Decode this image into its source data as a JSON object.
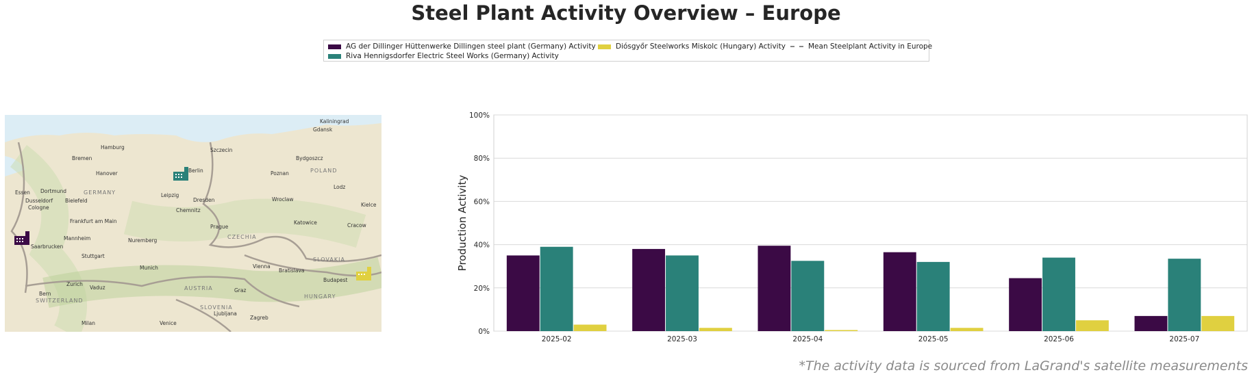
{
  "title": "Steel Plant Activity Overview – Europe",
  "legend": {
    "items": [
      {
        "label": "AG der Dillinger Hüttenwerke Dillingen steel plant (Germany) Activity",
        "color": "#3b0a45"
      },
      {
        "label": "Riva Hennigsdorfer Electric Steel Works (Germany) Activity",
        "color": "#2a8179"
      },
      {
        "label": "Diósgyőr Steelworks Miskolc (Hungary) Activity",
        "color": "#e0d040"
      },
      {
        "label": "Mean Steelplant Activity in Europe",
        "color": "#888888"
      }
    ]
  },
  "map": {
    "labels": [
      "Kaliningrad",
      "Gdansk",
      "Hamburg",
      "Szczecin",
      "Bydgoszcz",
      "Bremen",
      "Hanover",
      "Berlin",
      "Poznan",
      "POLAND",
      "Essen",
      "Dortmund",
      "GERMANY",
      "Bielefeld",
      "Leipzig",
      "Lodz",
      "Dusseldorf",
      "Cologne",
      "Dresden",
      "Wroclaw",
      "Kielce",
      "Chemnitz",
      "Frankfurt am Main",
      "Katowice",
      "Cracow",
      "Prague",
      "CZECHIA",
      "Mannheim",
      "Nuremberg",
      "Saarbrucken",
      "SLOVAKIA",
      "Stuttgart",
      "Munich",
      "Vienna",
      "Bratislava",
      "Budapest",
      "Zurich",
      "Vaduz",
      "AUSTRIA",
      "Bern",
      "Graz",
      "HUNGARY",
      "SWITZERLAND",
      "SLOVENIA",
      "Ljubljana",
      "Zagreb",
      "Milan",
      "Venice"
    ],
    "icons": [
      "factory-icon-dillingen",
      "factory-icon-hennigsdorf",
      "factory-icon-miskolc"
    ]
  },
  "chart_data": {
    "type": "bar",
    "categories": [
      "2025-02",
      "2025-03",
      "2025-04",
      "2025-05",
      "2025-06",
      "2025-07"
    ],
    "series": [
      {
        "name": "AG der Dillinger Hüttenwerke Dillingen steel plant (Germany) Activity",
        "color": "#3b0a45",
        "values": [
          35,
          38,
          39.5,
          36.5,
          24.5,
          7
        ]
      },
      {
        "name": "Riva Hennigsdorfer Electric Steel Works (Germany) Activity",
        "color": "#2a8179",
        "values": [
          39,
          35,
          32.5,
          32,
          34,
          33.5
        ]
      },
      {
        "name": "Diósgyőr Steelworks Miskolc (Hungary) Activity",
        "color": "#e0d040",
        "values": [
          3,
          1.5,
          0.5,
          1.5,
          5,
          7
        ]
      }
    ],
    "ylabel": "Production Activity",
    "ylim": [
      0,
      100
    ],
    "yticks": [
      "0%",
      "20%",
      "40%",
      "60%",
      "80%",
      "100%"
    ],
    "grid": true,
    "legend_position": "top-center"
  },
  "footnote": "*The activity data is sourced from LaGrand's satellite measurements"
}
